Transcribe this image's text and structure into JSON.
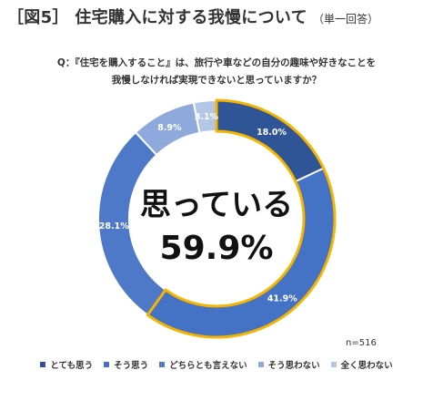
{
  "header": {
    "title": "［図5］ 住宅購入に対する我慢について",
    "subtitle": "（単一回答）"
  },
  "question": {
    "line1": "Q：『住宅を購入すること』は、旅行や車などの自分の趣味や好きなことを",
    "line2": "我慢しなければ実現できないと思っていますか？"
  },
  "center_label": {
    "line1": "思っている",
    "line2": "59.9%"
  },
  "sample_size": "n=516",
  "colors": {
    "とても思う": "#2f5597",
    "そう思う": "#4472c4",
    "どちらとも言えない": "#4e78c8",
    "そう思わない": "#8ea9db",
    "全く思わない": "#b4c7e7",
    "highlight_outline": "#f4b400"
  },
  "chart_data": {
    "type": "donut",
    "categories": [
      "とても思う",
      "そう思う",
      "どちらとも言えない",
      "そう思わない",
      "全く思わない"
    ],
    "values": [
      18.0,
      41.9,
      28.1,
      8.9,
      3.1
    ],
    "labels": [
      "18.0%",
      "41.9%",
      "28.1%",
      "8.9%",
      "3.1%"
    ],
    "highlighted_categories": [
      "とても思う",
      "そう思う"
    ],
    "highlighted_total": "59.9%",
    "legend_placement": "bottom"
  }
}
